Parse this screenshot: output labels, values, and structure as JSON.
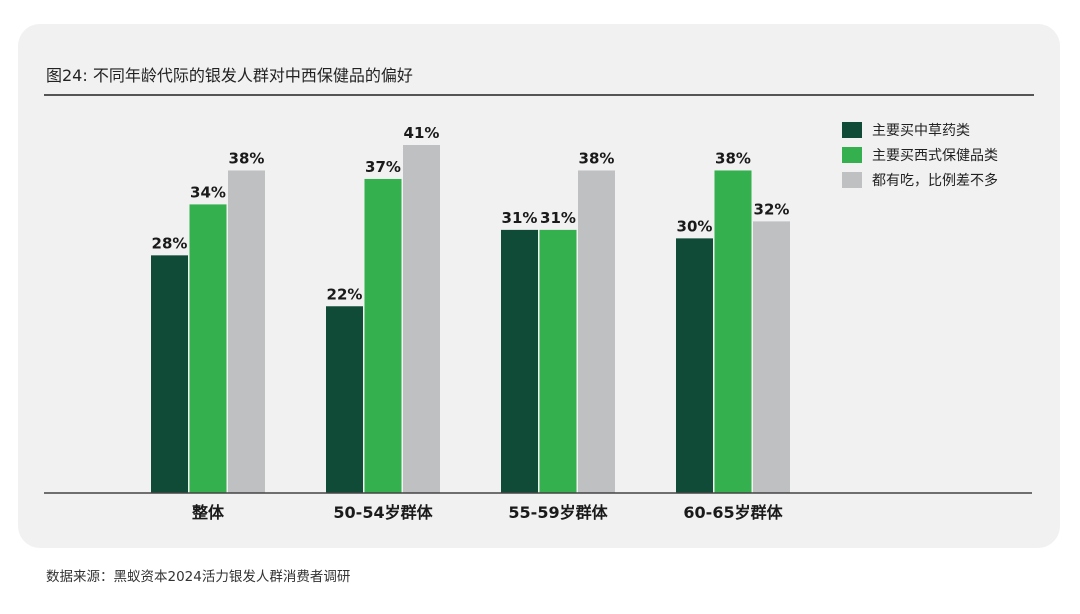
{
  "title": "图24: 不同年龄代际的银发人群对中西保健品的偏好",
  "source": "数据来源：黑蚁资本2024活力银发人群消费者调研",
  "colors": {
    "series": [
      "#0f4b37",
      "#35b04f",
      "#bfc0c2"
    ],
    "axis": "#444444"
  },
  "chart_data": {
    "type": "bar",
    "categories": [
      "整体",
      "50-54岁群体",
      "55-59岁群体",
      "60-65岁群体"
    ],
    "series": [
      {
        "name": "主要买中草药类",
        "values": [
          28,
          22,
          31,
          30
        ],
        "labels": [
          "28%",
          "22%",
          "31%",
          "30%"
        ]
      },
      {
        "name": "主要买西式保健品类",
        "values": [
          34,
          37,
          31,
          38
        ],
        "labels": [
          "34%",
          "37%",
          "31%",
          "38%"
        ]
      },
      {
        "name": "都有吃，比例差不多",
        "values": [
          38,
          41,
          38,
          32
        ],
        "labels": [
          "38%",
          "41%",
          "38%",
          "32%"
        ]
      }
    ],
    "ylim": [
      0,
      41
    ],
    "grid": false,
    "legend_position": "top-right",
    "xlabel": "",
    "ylabel": ""
  }
}
